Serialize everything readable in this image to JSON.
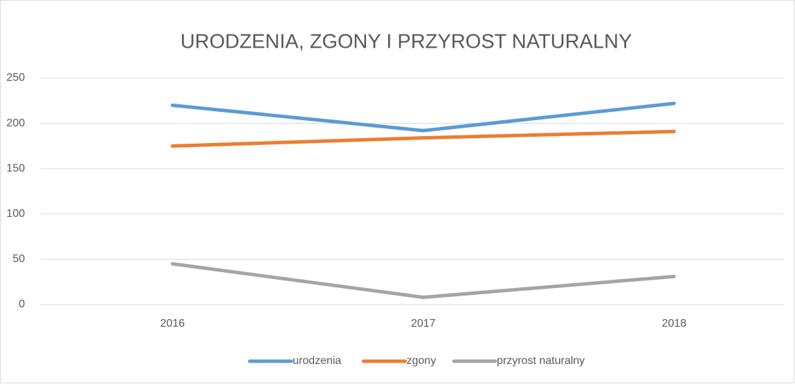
{
  "chart_data": {
    "type": "line",
    "title": "URODZENIA, ZGONY I PRZYROST NATURALNY",
    "categories": [
      "2016",
      "2017",
      "2018"
    ],
    "series": [
      {
        "name": "urodzenia",
        "color": "#5b9bd5",
        "values": [
          220,
          192,
          222
        ]
      },
      {
        "name": "zgony",
        "color": "#ed7d31",
        "values": [
          175,
          184,
          191
        ]
      },
      {
        "name": "przyrost naturalny",
        "color": "#a5a5a5",
        "values": [
          45,
          8,
          31
        ]
      }
    ],
    "ylim": [
      0,
      250
    ],
    "yticks": [
      0,
      50,
      100,
      150,
      200,
      250
    ],
    "grid": true,
    "legend": "bottom"
  }
}
